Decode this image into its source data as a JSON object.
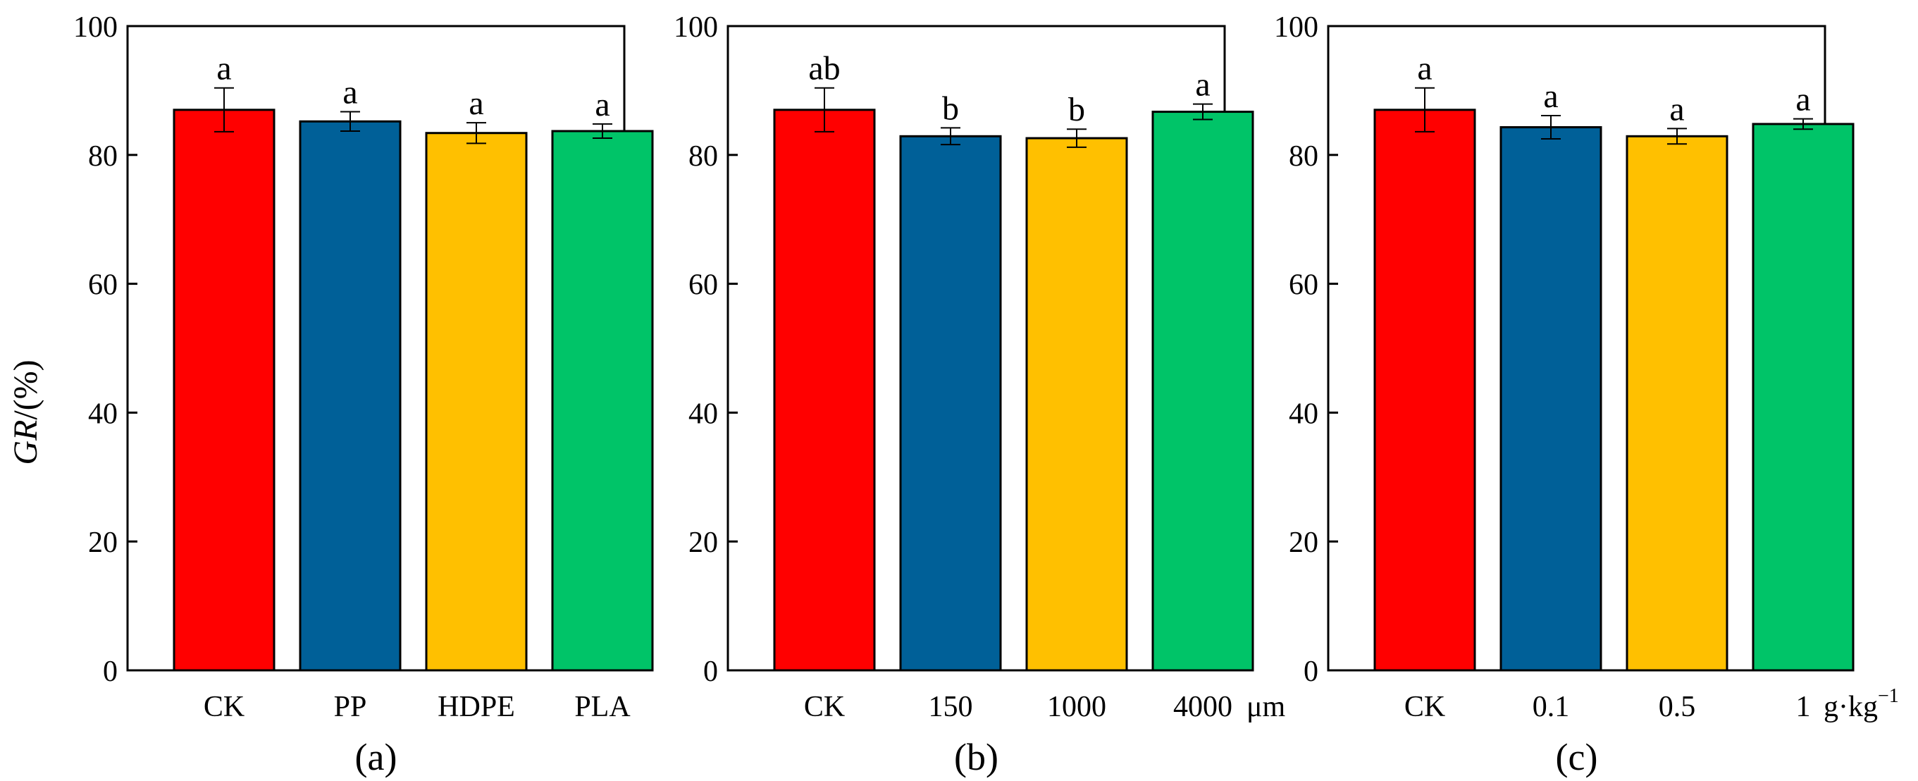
{
  "figure": {
    "ylabel_italic": "GR",
    "ylabel_rest": "/(%)"
  },
  "chart_data": [
    {
      "type": "bar",
      "panel_label": "(a)",
      "categories": [
        "CK",
        "PP",
        "HDPE",
        "PLA"
      ],
      "values": [
        87.0,
        85.2,
        83.4,
        83.7
      ],
      "errors": [
        3.4,
        1.5,
        1.6,
        1.1
      ],
      "letters": [
        "a",
        "a",
        "a",
        "a"
      ],
      "colors": [
        "#FF0000",
        "#006098",
        "#FFC000",
        "#00C468"
      ],
      "unit": "",
      "ylim": [
        0,
        100
      ],
      "yticks": [
        0,
        20,
        40,
        60,
        80,
        100
      ],
      "ylabel": "GR/(%)",
      "xlabel": ""
    },
    {
      "type": "bar",
      "panel_label": "(b)",
      "categories": [
        "CK",
        "150",
        "1000",
        "4000"
      ],
      "values": [
        87.0,
        82.9,
        82.6,
        86.7
      ],
      "errors": [
        3.4,
        1.3,
        1.4,
        1.2
      ],
      "letters": [
        "ab",
        "b",
        "b",
        "a"
      ],
      "colors": [
        "#FF0000",
        "#006098",
        "#FFC000",
        "#00C468"
      ],
      "unit": "μm",
      "ylim": [
        0,
        100
      ],
      "yticks": [
        0,
        20,
        40,
        60,
        80,
        100
      ],
      "ylabel": "",
      "xlabel": ""
    },
    {
      "type": "bar",
      "panel_label": "(c)",
      "categories": [
        "CK",
        "0.1",
        "0.5",
        "1"
      ],
      "values": [
        87.0,
        84.3,
        82.9,
        84.8
      ],
      "errors": [
        3.4,
        1.8,
        1.2,
        0.8
      ],
      "letters": [
        "a",
        "a",
        "a",
        "a"
      ],
      "colors": [
        "#FF0000",
        "#006098",
        "#FFC000",
        "#00C468"
      ],
      "unit": "g·kg",
      "unit_superscript": "−1",
      "ylim": [
        0,
        100
      ],
      "yticks": [
        0,
        20,
        40,
        60,
        80,
        100
      ],
      "ylabel": "",
      "xlabel": ""
    }
  ]
}
